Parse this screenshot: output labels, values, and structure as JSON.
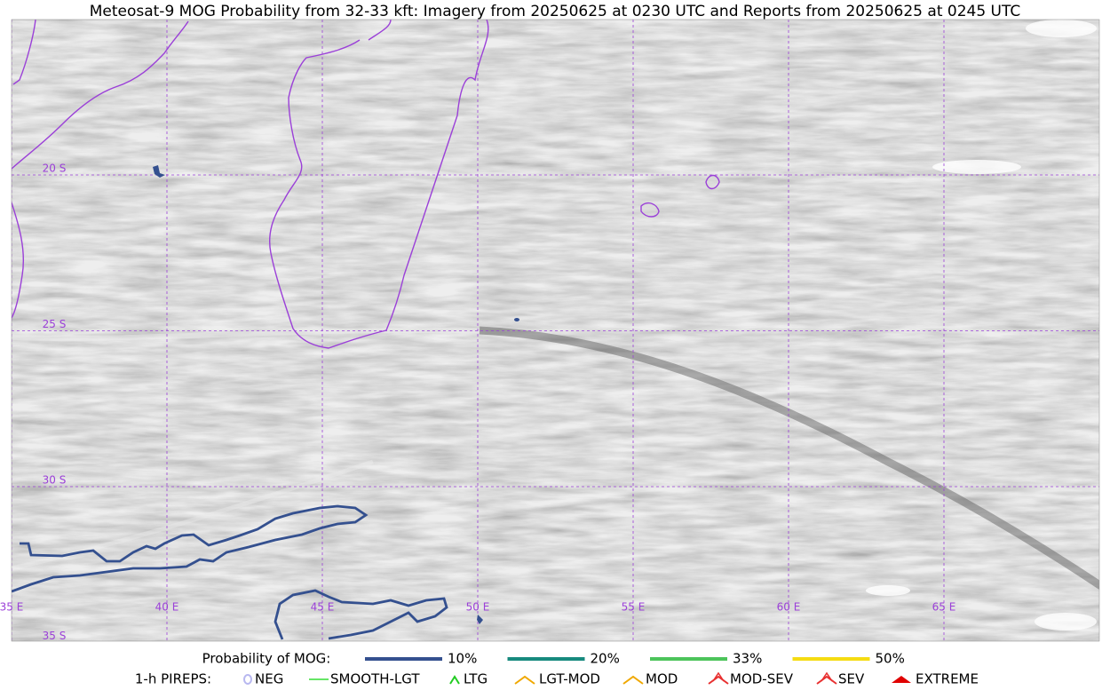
{
  "title": "Meteosat-9 MOG Probability from 32-33 kft: Imagery from 20250625 at 0230 UTC and Reports from 20250625 at 0245 UTC",
  "map": {
    "lat_labels": [
      "20 S",
      "25 S",
      "30 S",
      "35 S"
    ],
    "lon_labels": [
      "35 E",
      "40 E",
      "45 E",
      "50 E",
      "55 E",
      "60 E",
      "65 E"
    ]
  },
  "legend": {
    "mog_title": "Probability of MOG:",
    "mog_items": [
      {
        "label": "10%",
        "color": "#34508f"
      },
      {
        "label": "20%",
        "color": "#178a7e"
      },
      {
        "label": "33%",
        "color": "#4cc45a"
      },
      {
        "label": "50%",
        "color": "#f5dc12"
      }
    ],
    "pirep_title": "1-h PIREPS:",
    "pirep_items": [
      {
        "label": "NEG",
        "color": "#b8b8f0"
      },
      {
        "label": "SMOOTH-LGT",
        "color": "#33dd33"
      },
      {
        "label": "LTG",
        "color": "#22cc22"
      },
      {
        "label": "LGT-MOD",
        "color": "#f0a800"
      },
      {
        "label": "MOD",
        "color": "#f0a800"
      },
      {
        "label": "MOD-SEV",
        "color": "#e83030"
      },
      {
        "label": "SEV",
        "color": "#e83030"
      },
      {
        "label": "EXTREME",
        "color": "#e00000"
      }
    ]
  }
}
